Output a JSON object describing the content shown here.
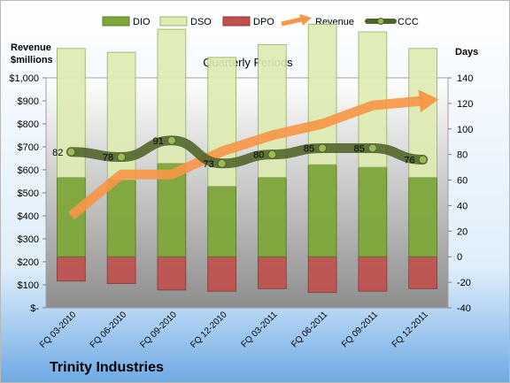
{
  "chart_data": {
    "type": "bar",
    "title": "Quarterly Periods",
    "company": "Trinity Industries",
    "left_axis_label": [
      "Revenue",
      "$millions"
    ],
    "right_axis_label": "Days",
    "categories": [
      "FQ 03-2010",
      "FQ 06-2010",
      "FQ 09-2010",
      "FQ 12-2010",
      "FQ 03-2011",
      "FQ 06-2011",
      "FQ 09-2011",
      "FQ 12-2011"
    ],
    "left_ticks": [
      "$-",
      "$100",
      "$200",
      "$300",
      "$400",
      "$500",
      "$600",
      "$700",
      "$800",
      "$900",
      "$1,000"
    ],
    "left_ylim": [
      0,
      1000
    ],
    "right_ticks": [
      "-40",
      "-20",
      "0",
      "20",
      "40",
      "60",
      "80",
      "100",
      "120",
      "140"
    ],
    "right_ylim": [
      -40,
      140
    ],
    "legend": [
      "DIO",
      "DSO",
      "DPO",
      "Revenue",
      "CCC"
    ],
    "legend_position": "top",
    "series": [
      {
        "name": "DIO",
        "type": "bar",
        "axis": "right",
        "values": [
          62,
          60,
          73,
          55,
          62,
          72,
          70,
          62
        ],
        "color": "#7fa73a"
      },
      {
        "name": "DSO",
        "type": "bar",
        "axis": "right",
        "values": [
          101,
          100,
          105,
          101,
          104,
          110,
          106,
          101
        ],
        "color": "#dfecb2"
      },
      {
        "name": "DPO",
        "type": "bar",
        "axis": "right",
        "values": [
          -19,
          -21,
          -26,
          -27,
          -25,
          -28,
          -27,
          -25
        ],
        "color": "#c0504d"
      },
      {
        "name": "Revenue",
        "type": "line",
        "axis": "left",
        "values": [
          400,
          580,
          580,
          680,
          750,
          800,
          880,
          900
        ],
        "color": "#f79646"
      },
      {
        "name": "CCC",
        "type": "line",
        "axis": "right",
        "values": [
          82,
          78,
          91,
          73,
          80,
          85,
          85,
          76
        ],
        "color": "#4f6228"
      }
    ],
    "ccc_labels": [
      "82",
      "78",
      "91",
      "73",
      "80",
      "85",
      "85",
      "76"
    ]
  }
}
